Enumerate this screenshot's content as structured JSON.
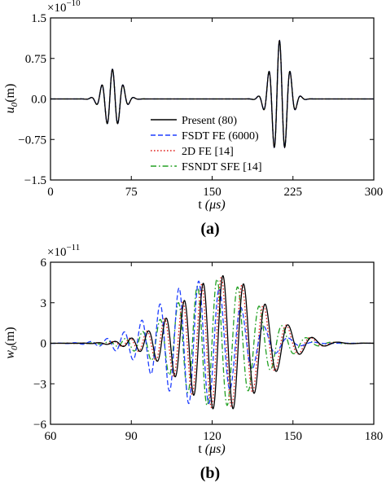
{
  "charts_meta": {
    "colors": {
      "present": "#000000",
      "fsdt": "#1f3fff",
      "fe2d": "#e0221e",
      "fsndt": "#22a022"
    }
  },
  "chart_data": [
    {
      "type": "line",
      "caption": "(a)",
      "ylabel": "u",
      "ylabel_sub": "0",
      "ylabel_unit": "(m)",
      "xlabel": "t",
      "xlabel_unit": "(μs)",
      "exponent_base": "×10",
      "exponent": "−10",
      "xlim": [
        0,
        300
      ],
      "ylim": [
        -1.5,
        1.5
      ],
      "xticks": [
        0,
        75,
        150,
        225,
        300
      ],
      "xtick_labels": [
        "0",
        "75",
        "150",
        "225",
        "300"
      ],
      "yticks": [
        -1.5,
        -0.75,
        0,
        0.75,
        1.5
      ],
      "ytick_labels": [
        "−1.5",
        "−0.75",
        "0.0",
        "0.75",
        "1.5"
      ],
      "legend": [
        "Present (80)",
        "FSDT FE (6000)",
        "2D FE [14]",
        "FSNDT SFE [14]"
      ],
      "legend_loc": "lower-right",
      "packets": [
        {
          "t0": 57.5,
          "amp": 0.55,
          "period": 10,
          "sigma": 8
        },
        {
          "t0": 212.5,
          "amp": 1.08,
          "period": 10,
          "sigma": 8
        }
      ],
      "series": [
        {
          "name": "Present (80)",
          "style": "solid",
          "dt": 0,
          "scale": 1.0
        },
        {
          "name": "FSDT FE (6000)",
          "style": "dashed",
          "dt": 0,
          "scale": 1.0
        },
        {
          "name": "2D FE [14]",
          "style": "dotted",
          "dt": 0,
          "scale": 1.0
        },
        {
          "name": "FSNDT SFE [14]",
          "style": "dashdot",
          "dt": 0,
          "scale": 1.0
        }
      ]
    },
    {
      "type": "line",
      "caption": "(b)",
      "ylabel": "w",
      "ylabel_sub": "0",
      "ylabel_unit": "(m)",
      "xlabel": "t",
      "xlabel_unit": "(μs)",
      "exponent_base": "×10",
      "exponent": "−11",
      "xlim": [
        60,
        180
      ],
      "ylim": [
        -6,
        6
      ],
      "xticks": [
        60,
        90,
        120,
        150,
        180
      ],
      "xtick_labels": [
        "60",
        "90",
        "120",
        "150",
        "180"
      ],
      "yticks": [
        -6,
        -3,
        0,
        3,
        6
      ],
      "ytick_labels": [
        "−6",
        "−3",
        "0",
        "3",
        "6"
      ],
      "wave": {
        "t0": 124,
        "amp": 5.0,
        "period": 7.5,
        "sigma": 15,
        "chirp": -0.045
      },
      "series": [
        {
          "name": "Present (80)",
          "style": "solid",
          "dt": 0,
          "scale": 1.0
        },
        {
          "name": "FSDT FE (6000)",
          "style": "dashed",
          "dt": -9,
          "scale": 0.92
        },
        {
          "name": "2D FE [14]",
          "style": "dotted",
          "dt": -0.6,
          "scale": 0.98
        },
        {
          "name": "FSNDT SFE [14]",
          "style": "dashdot",
          "dt": -2.2,
          "scale": 0.95
        }
      ]
    }
  ]
}
